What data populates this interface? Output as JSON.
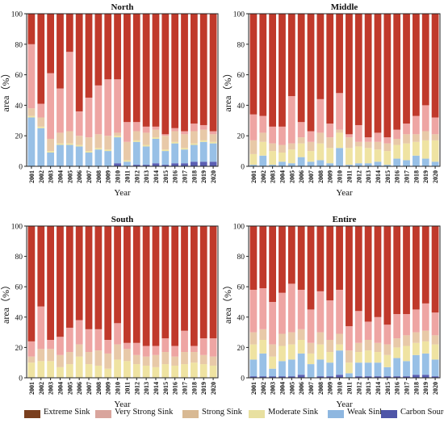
{
  "chart_data": [
    {
      "type": "bar",
      "stacked": true,
      "title": "North",
      "xlabel": "Year",
      "ylabel": "area（%）",
      "ylim": [
        0,
        100
      ],
      "yticks": [
        0,
        20,
        40,
        60,
        80,
        100
      ],
      "categories": [
        "2001",
        "2002",
        "2003",
        "2004",
        "2005",
        "2006",
        "2007",
        "2008",
        "2009",
        "2010",
        "2011",
        "2012",
        "2013",
        "2014",
        "2015",
        "2016",
        "2017",
        "2018",
        "2019",
        "2020"
      ],
      "series": [
        {
          "name": "Carbon Source",
          "values": [
            0,
            0,
            0,
            0,
            0,
            0,
            0,
            0,
            0,
            2,
            0,
            1,
            1,
            2,
            1,
            2,
            2,
            3,
            3,
            3
          ]
        },
        {
          "name": "Weak Sink",
          "values": [
            32,
            25,
            9,
            14,
            14,
            13,
            9,
            11,
            10,
            17,
            3,
            15,
            12,
            16,
            9,
            13,
            9,
            11,
            13,
            12
          ]
        },
        {
          "name": "Moderate Sink",
          "values": [
            1,
            1,
            1,
            1,
            1,
            1,
            1,
            1,
            1,
            1,
            1,
            1,
            1,
            1,
            1,
            1,
            1,
            1,
            1,
            1
          ]
        },
        {
          "name": "Strong Sink",
          "values": [
            5,
            6,
            8,
            7,
            8,
            6,
            9,
            9,
            9,
            2,
            12,
            6,
            8,
            5,
            9,
            7,
            9,
            8,
            7,
            5
          ]
        },
        {
          "name": "Very Strong Sink",
          "values": [
            42,
            9,
            43,
            29,
            52,
            16,
            26,
            32,
            37,
            35,
            13,
            6,
            4,
            2,
            1,
            2,
            2,
            5,
            3,
            2
          ]
        },
        {
          "name": "Extreme Sink",
          "values": [
            20,
            59,
            39,
            49,
            25,
            64,
            55,
            47,
            43,
            43,
            71,
            71,
            74,
            74,
            79,
            75,
            77,
            72,
            73,
            77
          ]
        }
      ]
    },
    {
      "type": "bar",
      "stacked": true,
      "title": "Middle",
      "xlabel": "Year",
      "ylabel": "area（%）",
      "ylim": [
        0,
        100
      ],
      "yticks": [
        0,
        20,
        40,
        60,
        80,
        100
      ],
      "categories": [
        "2001",
        "2002",
        "2003",
        "2004",
        "2005",
        "2006",
        "2007",
        "2008",
        "2009",
        "2010",
        "2011",
        "2012",
        "2013",
        "2014",
        "2015",
        "2016",
        "2017",
        "2018",
        "2019",
        "2020"
      ],
      "series": [
        {
          "name": "Carbon Source",
          "values": [
            0,
            0,
            0,
            0,
            0,
            0,
            0,
            0,
            0,
            0,
            0,
            0,
            0,
            0,
            0,
            0,
            0,
            0,
            0,
            0
          ]
        },
        {
          "name": "Weak Sink",
          "values": [
            1,
            7,
            1,
            3,
            2,
            6,
            3,
            4,
            2,
            12,
            1,
            2,
            2,
            3,
            1,
            5,
            4,
            7,
            5,
            3
          ]
        },
        {
          "name": "Moderate Sink",
          "values": [
            7,
            9,
            9,
            6,
            9,
            9,
            7,
            11,
            10,
            10,
            11,
            11,
            10,
            8,
            9,
            9,
            11,
            9,
            12,
            14
          ]
        },
        {
          "name": "Strong Sink",
          "values": [
            9,
            6,
            5,
            5,
            4,
            4,
            6,
            7,
            7,
            2,
            7,
            3,
            4,
            5,
            5,
            4,
            6,
            5,
            6,
            4
          ]
        },
        {
          "name": "Very Strong Sink",
          "values": [
            17,
            11,
            11,
            12,
            31,
            10,
            7,
            22,
            9,
            24,
            2,
            11,
            3,
            6,
            4,
            6,
            7,
            12,
            17,
            11
          ]
        },
        {
          "name": "Extreme Sink",
          "values": [
            66,
            67,
            74,
            74,
            54,
            71,
            77,
            56,
            72,
            52,
            79,
            73,
            81,
            78,
            81,
            76,
            72,
            67,
            60,
            68
          ]
        }
      ]
    },
    {
      "type": "bar",
      "stacked": true,
      "title": "South",
      "xlabel": "Year",
      "ylabel": "area（%）",
      "ylim": [
        0,
        100
      ],
      "yticks": [
        0,
        20,
        40,
        60,
        80,
        100
      ],
      "categories": [
        "2001",
        "2002",
        "2003",
        "2004",
        "2005",
        "2006",
        "2007",
        "2008",
        "2009",
        "2010",
        "2011",
        "2012",
        "2013",
        "2014",
        "2015",
        "2016",
        "2017",
        "2018",
        "2019",
        "2020"
      ],
      "series": [
        {
          "name": "Carbon Source",
          "values": [
            0,
            0,
            0,
            0,
            0,
            0,
            0,
            0,
            0,
            0,
            0,
            0,
            0,
            0,
            0,
            0,
            0,
            0,
            0,
            0
          ]
        },
        {
          "name": "Weak Sink",
          "values": [
            0,
            0,
            0,
            0,
            0,
            0,
            0,
            0,
            0,
            0,
            0,
            0,
            0,
            0,
            0,
            0,
            0,
            0,
            0,
            0
          ]
        },
        {
          "name": "Moderate Sink",
          "values": [
            10,
            11,
            11,
            7,
            9,
            14,
            9,
            8,
            6,
            12,
            11,
            9,
            8,
            7,
            9,
            8,
            9,
            10,
            9,
            8
          ]
        },
        {
          "name": "Strong Sink",
          "values": [
            4,
            8,
            8,
            8,
            8,
            8,
            8,
            10,
            10,
            10,
            8,
            6,
            6,
            8,
            8,
            6,
            8,
            7,
            6,
            6
          ]
        },
        {
          "name": "Very Strong Sink",
          "values": [
            10,
            28,
            6,
            12,
            16,
            16,
            15,
            14,
            9,
            14,
            4,
            8,
            7,
            6,
            9,
            7,
            14,
            4,
            11,
            12
          ]
        },
        {
          "name": "Extreme Sink",
          "values": [
            76,
            53,
            75,
            73,
            67,
            62,
            68,
            68,
            75,
            64,
            77,
            77,
            79,
            79,
            74,
            79,
            69,
            79,
            74,
            74
          ]
        }
      ]
    },
    {
      "type": "bar",
      "stacked": true,
      "title": "Entire",
      "xlabel": "Year",
      "ylabel": "area（%）",
      "ylim": [
        0,
        100
      ],
      "yticks": [
        0,
        20,
        40,
        60,
        80,
        100
      ],
      "categories": [
        "2001",
        "2002",
        "2003",
        "2004",
        "2005",
        "2006",
        "2007",
        "2008",
        "2009",
        "2010",
        "2011",
        "2012",
        "2013",
        "2014",
        "2015",
        "2016",
        "2017",
        "2018",
        "2019",
        "2020"
      ],
      "series": [
        {
          "name": "Carbon Source",
          "values": [
            1,
            1,
            1,
            1,
            1,
            2,
            0,
            1,
            1,
            2,
            0,
            1,
            1,
            1,
            1,
            1,
            1,
            2,
            2,
            1
          ]
        },
        {
          "name": "Weak Sink",
          "values": [
            11,
            15,
            5,
            10,
            11,
            14,
            9,
            11,
            9,
            16,
            3,
            9,
            9,
            9,
            6,
            12,
            10,
            13,
            14,
            11
          ]
        },
        {
          "name": "Moderate Sink",
          "values": [
            10,
            9,
            8,
            10,
            10,
            9,
            7,
            10,
            7,
            4,
            7,
            7,
            8,
            7,
            8,
            7,
            10,
            8,
            8,
            10
          ]
        },
        {
          "name": "Strong Sink",
          "values": [
            8,
            7,
            8,
            8,
            8,
            7,
            7,
            8,
            8,
            7,
            8,
            6,
            7,
            6,
            7,
            6,
            7,
            7,
            7,
            6
          ]
        },
        {
          "name": "Very Strong Sink",
          "values": [
            28,
            27,
            28,
            27,
            32,
            26,
            22,
            27,
            26,
            29,
            16,
            21,
            12,
            17,
            13,
            16,
            14,
            15,
            18,
            15
          ]
        },
        {
          "name": "Extreme Sink",
          "values": [
            42,
            41,
            50,
            44,
            38,
            42,
            55,
            43,
            49,
            42,
            66,
            56,
            63,
            60,
            65,
            58,
            58,
            55,
            51,
            57
          ]
        }
      ]
    }
  ],
  "colors": {
    "Extreme Sink": "#c0392b",
    "Very Strong Sink": "#eea5a3",
    "Strong Sink": "#e8c9a8",
    "Moderate Sink": "#efe3a2",
    "Weak Sink": "#98c0e6",
    "Carbon Source": "#5b5fb3"
  },
  "legend_swatches": {
    "Extreme Sink": "#7a3f1e",
    "Very Strong Sink": "#d9a59d",
    "Strong Sink": "#d8b993",
    "Moderate Sink": "#e8e0a0",
    "Weak Sink": "#8eb7e0",
    "Carbon Source": "#4f56a8"
  },
  "legend": {
    "items": [
      "Extreme Sink",
      "Very Strong Sink",
      "Strong Sink",
      "Moderate Sink",
      "Weak Sink",
      "Carbon Source"
    ]
  }
}
